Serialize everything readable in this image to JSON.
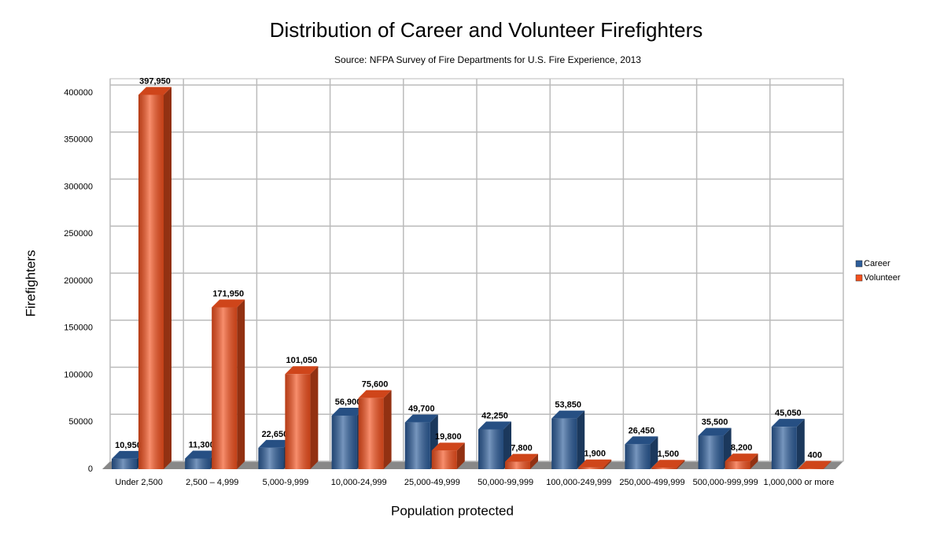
{
  "chart_data": {
    "type": "bar3d",
    "title": "Distribution of Career and Volunteer Firefighters",
    "subtitle": "Source: NFPA Survey of Fire Departments for U.S. Fire Experience, 2013",
    "x_label": "Population protected",
    "y_label": "Firefighters",
    "categories": [
      "Under 2,500",
      "2,500 – 4,999",
      "5,000-9,999",
      "10,000-24,999",
      "25,000-49,999",
      "50,000-99,999",
      "100,000-249,999",
      "250,000-499,999",
      "500,000-999,999",
      "1,000,000 or more"
    ],
    "series": [
      {
        "name": "Career",
        "color": "#2d5d9a",
        "values": [
          10950,
          11300,
          22650,
          56900,
          49700,
          42250,
          53850,
          26450,
          35500,
          45050
        ],
        "value_labels": [
          "10,950",
          "11,300",
          "22,650",
          "56,900",
          "49,700",
          "42,250",
          "53,850",
          "26,450",
          "35,500",
          "45,050"
        ]
      },
      {
        "name": "Volunteer",
        "color": "#f4511e",
        "values": [
          397950,
          171950,
          101050,
          75600,
          19800,
          7800,
          1900,
          1500,
          8200,
          400
        ],
        "value_labels": [
          "397,950",
          "171,950",
          "101,050",
          "75,600",
          "19,800",
          "7,800",
          "1,900",
          "1,500",
          "8,200",
          "400"
        ]
      }
    ],
    "ylim": [
      0,
      400000
    ],
    "yticks": [
      0,
      50000,
      100000,
      150000,
      200000,
      250000,
      300000,
      350000,
      400000
    ],
    "grid": true,
    "legend": "right"
  }
}
